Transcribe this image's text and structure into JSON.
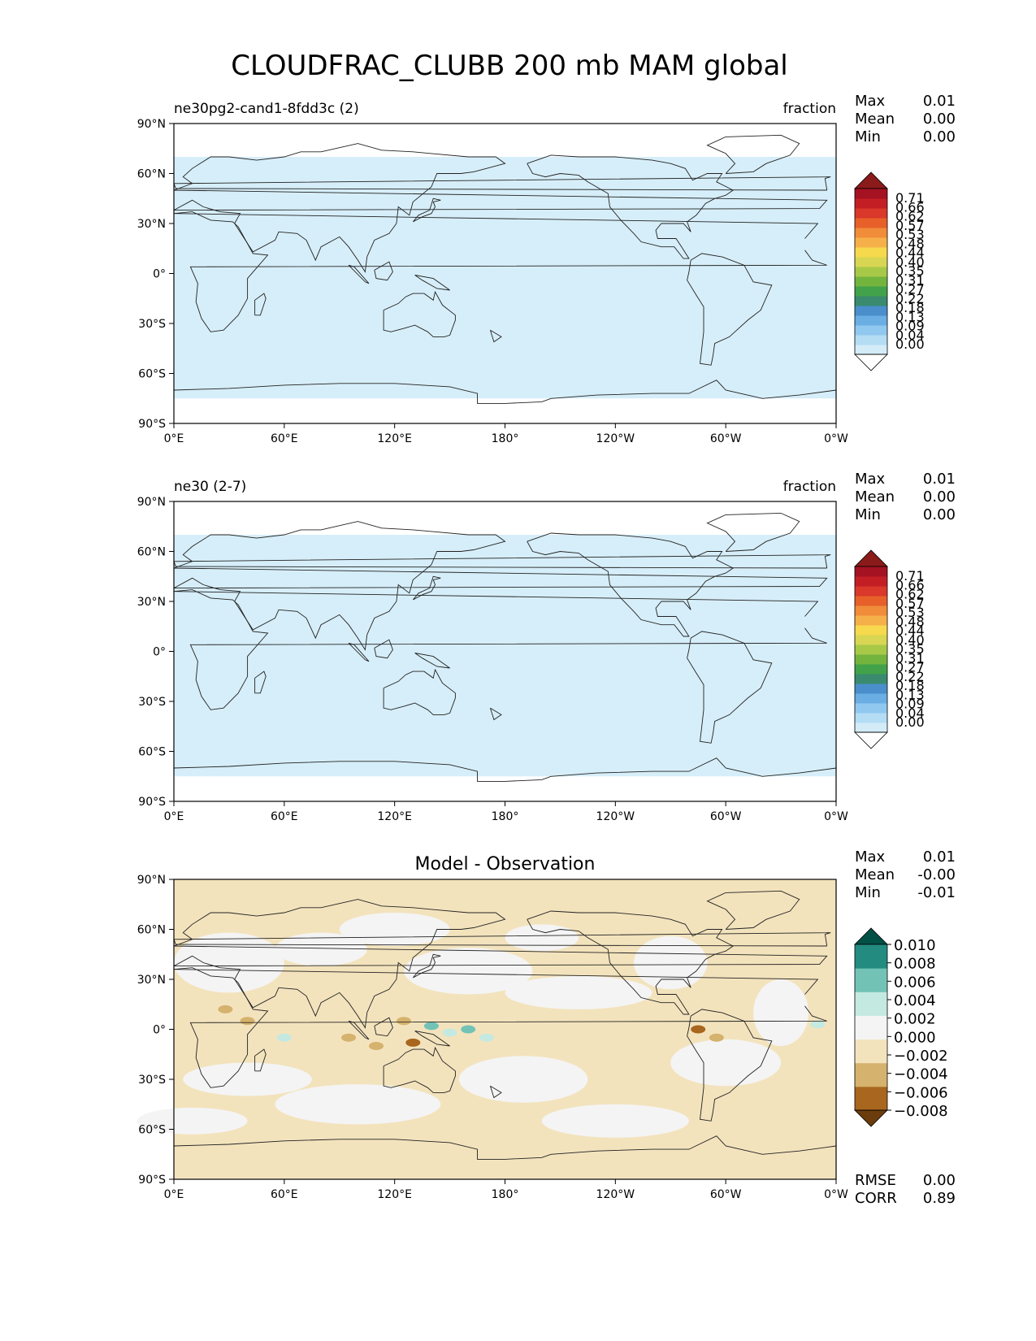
{
  "title": "CLOUDFRAC_CLUBB 200 mb MAM global",
  "lat_ticks": [
    "90°N",
    "60°N",
    "30°N",
    "0°",
    "30°S",
    "60°S",
    "90°S"
  ],
  "lon_ticks": [
    "0°E",
    "60°E",
    "120°E",
    "180°",
    "120°W",
    "60°W",
    "0°W"
  ],
  "panels": [
    {
      "left_title": "ne30pg2-cand1-8fdd3c (2)",
      "right_title": "fraction",
      "center_title": "",
      "stats": [
        {
          "label": "Max",
          "value": "0.01"
        },
        {
          "label": "Mean",
          "value": "0.00"
        },
        {
          "label": "Min",
          "value": "0.00"
        }
      ],
      "field_color": "#d6eef9",
      "colorbar": {
        "ticks": [
          "0.71",
          "0.66",
          "0.62",
          "0.57",
          "0.53",
          "0.48",
          "0.44",
          "0.40",
          "0.35",
          "0.31",
          "0.27",
          "0.22",
          "0.18",
          "0.13",
          "0.09",
          "0.04",
          "0.00"
        ],
        "colors": [
          "#ffffff",
          "#d3ecf8",
          "#b4ddf4",
          "#91c8ef",
          "#6aaee4",
          "#4a8fcb",
          "#3a8a70",
          "#41a24a",
          "#73b43f",
          "#a8c948",
          "#d8d653",
          "#f7d94d",
          "#f6b04a",
          "#f08c3a",
          "#e76029",
          "#d9382a",
          "#c41e25",
          "#a51222",
          "#8b1a1a"
        ]
      }
    },
    {
      "left_title": "ne30 (2-7)",
      "right_title": "fraction",
      "center_title": "",
      "stats": [
        {
          "label": "Max",
          "value": "0.01"
        },
        {
          "label": "Mean",
          "value": "0.00"
        },
        {
          "label": "Min",
          "value": "0.00"
        }
      ],
      "field_color": "#d6eef9",
      "colorbar": {
        "ticks": [
          "0.71",
          "0.66",
          "0.62",
          "0.57",
          "0.53",
          "0.48",
          "0.44",
          "0.40",
          "0.35",
          "0.31",
          "0.27",
          "0.22",
          "0.18",
          "0.13",
          "0.09",
          "0.04",
          "0.00"
        ],
        "colors": [
          "#ffffff",
          "#d3ecf8",
          "#b4ddf4",
          "#91c8ef",
          "#6aaee4",
          "#4a8fcb",
          "#3a8a70",
          "#41a24a",
          "#73b43f",
          "#a8c948",
          "#d8d653",
          "#f7d94d",
          "#f6b04a",
          "#f08c3a",
          "#e76029",
          "#d9382a",
          "#c41e25",
          "#a51222",
          "#8b1a1a"
        ]
      }
    },
    {
      "left_title": "",
      "right_title": "",
      "center_title": "Model - Observation",
      "stats": [
        {
          "label": "Max",
          "value": "0.01"
        },
        {
          "label": "Mean",
          "value": "-0.00"
        },
        {
          "label": "Min",
          "value": "-0.01"
        }
      ],
      "field_color": "#f3e3bd",
      "colorbar": {
        "ticks": [
          "0.010",
          "0.008",
          "0.006",
          "0.004",
          "0.002",
          "0.000",
          "−0.002",
          "−0.004",
          "−0.006",
          "−0.008"
        ],
        "colors": [
          "#6b3d0c",
          "#a8661e",
          "#d5b26d",
          "#f3e3bd",
          "#f4f4f4",
          "#c4e9e1",
          "#72c3b6",
          "#238b80",
          "#015045"
        ]
      },
      "extra_stats": [
        {
          "label": "RMSE",
          "value": "0.00"
        },
        {
          "label": "CORR",
          "value": "0.89"
        }
      ]
    }
  ]
}
